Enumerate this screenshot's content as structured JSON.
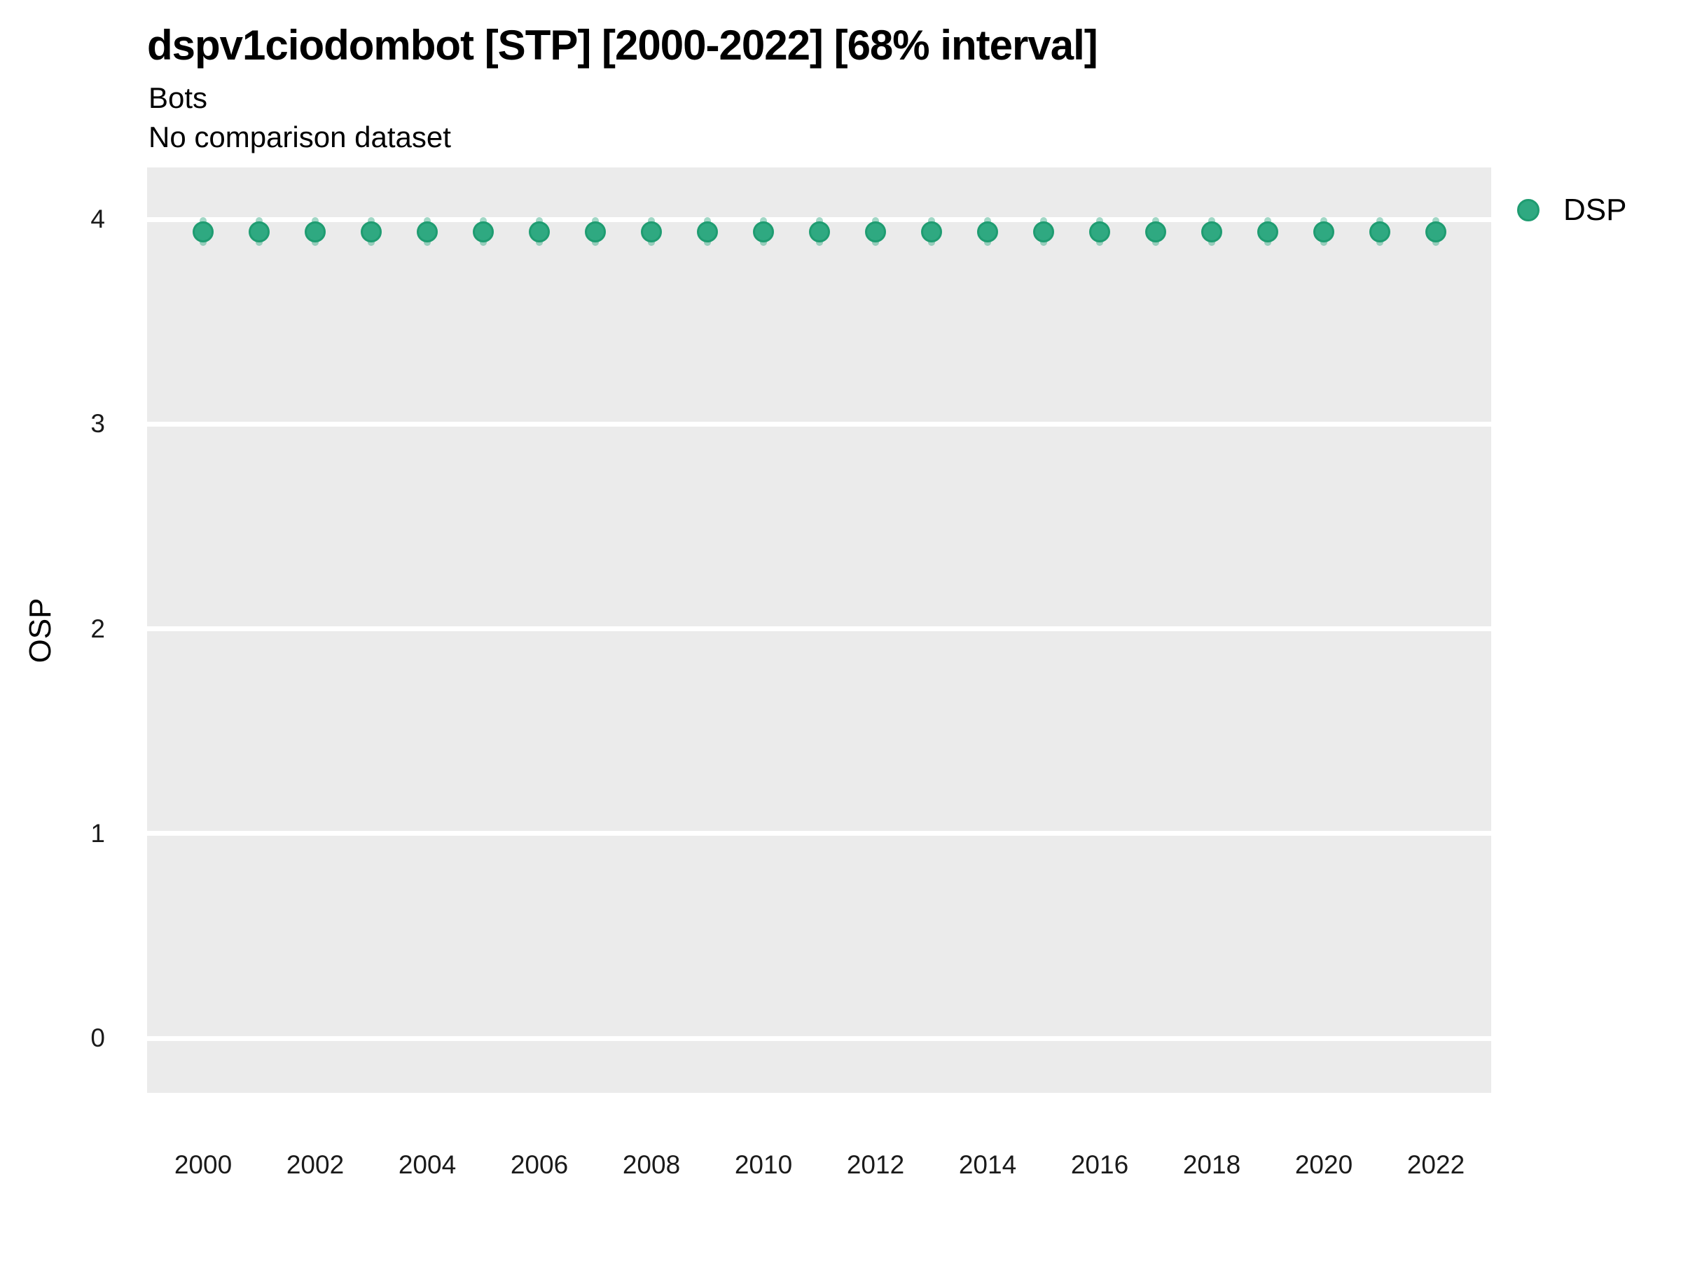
{
  "title": "dspv1ciodombot [STP] [2000-2022] [68% interval]",
  "subtitle": "Bots",
  "note": "No comparison dataset",
  "y_axis_title": "OSP",
  "legend": {
    "label": "DSP"
  },
  "colors": {
    "point_fill": "#2fa981",
    "point_border": "#1f9c71",
    "interval": "rgba(47,169,129,0.45)",
    "panel_background": "#ebebeb",
    "gridline": "#ffffff",
    "text": "#000000"
  },
  "chart_data": {
    "type": "scatter",
    "subtype": "pointrange",
    "title": "dspv1ciodombot [STP] [2000-2022] [68% interval]",
    "subtitle": "Bots",
    "note": "No comparison dataset",
    "xlabel": "",
    "ylabel": "OSP",
    "interval_level": "68%",
    "legend_entries": [
      "DSP"
    ],
    "legend_position": "right-top",
    "grid": "major-horizontal-only",
    "x": [
      2000,
      2001,
      2002,
      2003,
      2004,
      2005,
      2006,
      2007,
      2008,
      2009,
      2010,
      2011,
      2012,
      2013,
      2014,
      2015,
      2016,
      2017,
      2018,
      2019,
      2020,
      2021,
      2022
    ],
    "series": [
      {
        "name": "DSP",
        "values": [
          3.94,
          3.94,
          3.94,
          3.94,
          3.94,
          3.94,
          3.94,
          3.94,
          3.94,
          3.94,
          3.94,
          3.94,
          3.94,
          3.94,
          3.94,
          3.94,
          3.94,
          3.94,
          3.94,
          3.94,
          3.94,
          3.94,
          3.94
        ],
        "ci_low": [
          3.87,
          3.87,
          3.87,
          3.87,
          3.87,
          3.87,
          3.87,
          3.87,
          3.87,
          3.87,
          3.87,
          3.87,
          3.87,
          3.87,
          3.87,
          3.87,
          3.87,
          3.87,
          3.87,
          3.87,
          3.87,
          3.87,
          3.87
        ],
        "ci_high": [
          4.01,
          4.01,
          4.01,
          4.01,
          4.01,
          4.01,
          4.01,
          4.01,
          4.01,
          4.01,
          4.01,
          4.01,
          4.01,
          4.01,
          4.01,
          4.01,
          4.01,
          4.01,
          4.01,
          4.01,
          4.01,
          4.01,
          4.01
        ]
      }
    ],
    "xticks": [
      2000,
      2002,
      2004,
      2006,
      2008,
      2010,
      2012,
      2014,
      2016,
      2018,
      2020,
      2022
    ],
    "yticks": [
      0,
      1,
      2,
      3,
      4
    ],
    "xlim": [
      1999,
      2023
    ],
    "ylim": [
      -0.27,
      4.26
    ]
  }
}
